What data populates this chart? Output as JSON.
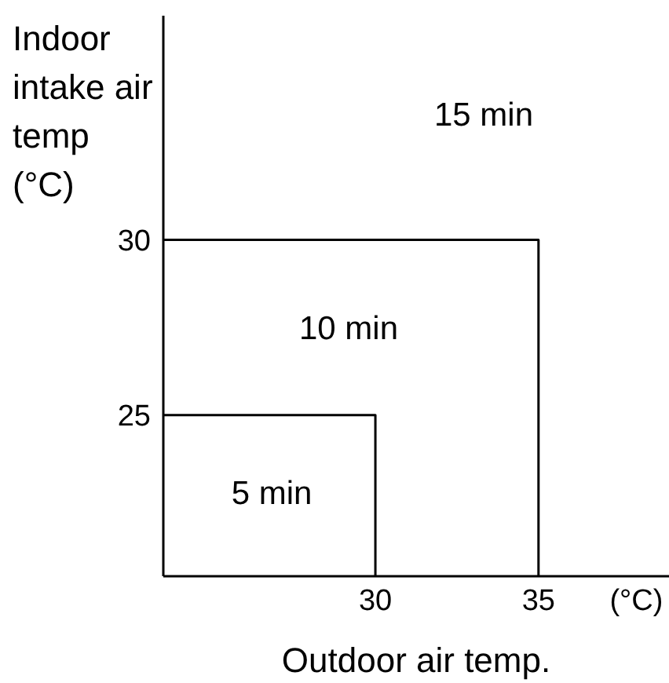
{
  "chart_data": {
    "type": "line",
    "xlabel": "Outdoor air temp.",
    "ylabel": "Indoor intake air temp (°C)",
    "xlim": [
      23.5,
      39
    ],
    "ylim": [
      20.4,
      36.4
    ],
    "xticks": [
      30,
      35,
      {
        "value": 38,
        "label": "(°C)"
      }
    ],
    "yticks": [
      25,
      30
    ],
    "series": [
      {
        "color": "#000000",
        "x": [
          23.5,
          30,
          30
        ],
        "values": [
          25,
          25,
          20.4
        ]
      },
      {
        "color": "#000000",
        "x": [
          23.5,
          35,
          35
        ],
        "values": [
          30,
          30,
          20.4
        ]
      }
    ],
    "annotations": [
      "5 min",
      "10 min",
      "15 min"
    ]
  }
}
